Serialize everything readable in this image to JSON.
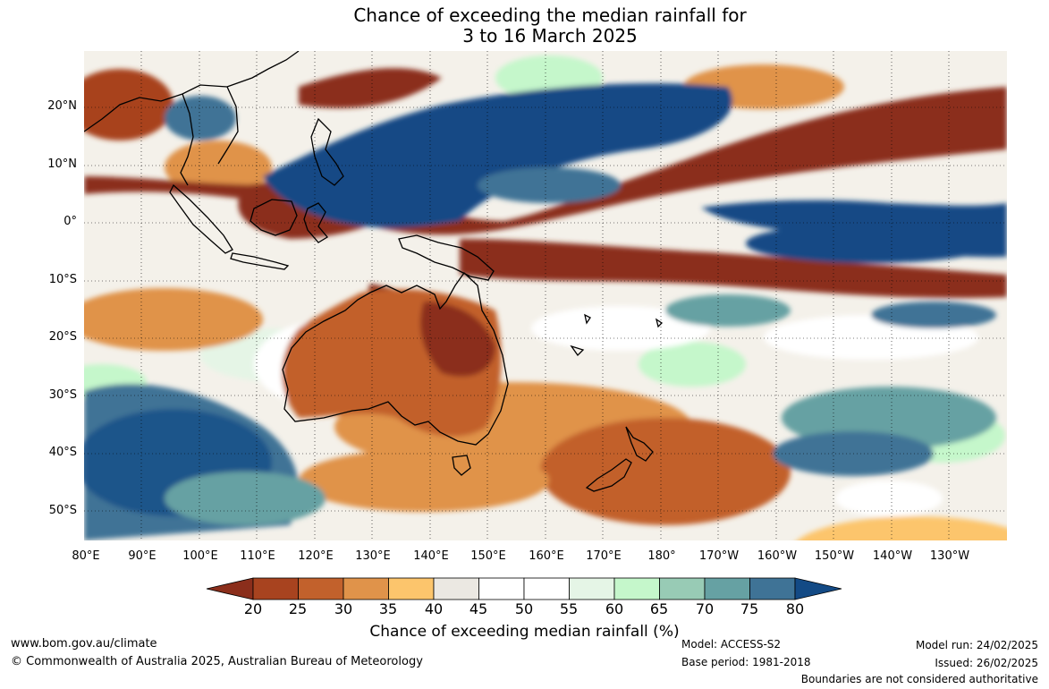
{
  "header": {
    "title_line1": "Chance of exceeding the median rainfall for",
    "title_line2": "3 to 16 March 2025"
  },
  "map": {
    "lat_labels": [
      "20°N",
      "10°N",
      "0°",
      "10°S",
      "20°S",
      "30°S",
      "40°S",
      "50°S"
    ],
    "lon_labels": [
      "80°E",
      "90°E",
      "100°E",
      "110°E",
      "120°E",
      "130°E",
      "140°E",
      "150°E",
      "160°E",
      "170°E",
      "180°",
      "170°W",
      "160°W",
      "150°W",
      "140°W",
      "130°W"
    ]
  },
  "colorbar": {
    "title": "Chance of exceeding median rainfall (%)",
    "ticks": [
      "20",
      "25",
      "30",
      "35",
      "40",
      "45",
      "50",
      "55",
      "60",
      "65",
      "70",
      "75",
      "80"
    ],
    "colors": [
      "#8b2e1b",
      "#a8431f",
      "#c2612c",
      "#e0934a",
      "#fcc56c",
      "#ebe8e2",
      "#ffffff",
      "#ffffff",
      "#e5f5e6",
      "#c5f7cb",
      "#98cbb5",
      "#66a1a3",
      "#3f7396",
      "#134a85"
    ]
  },
  "footer": {
    "url": "www.bom.gov.au/climate",
    "copyright": "© Commonwealth of Australia 2025, Australian Bureau of Meteorology",
    "model": "Model: ACCESS-S2",
    "base_period": "Base period: 1981-2018",
    "model_run": "Model run: 24/02/2025",
    "issued": "Issued: 26/02/2025",
    "disclaimer": "Boundaries are not considered authoritative"
  }
}
